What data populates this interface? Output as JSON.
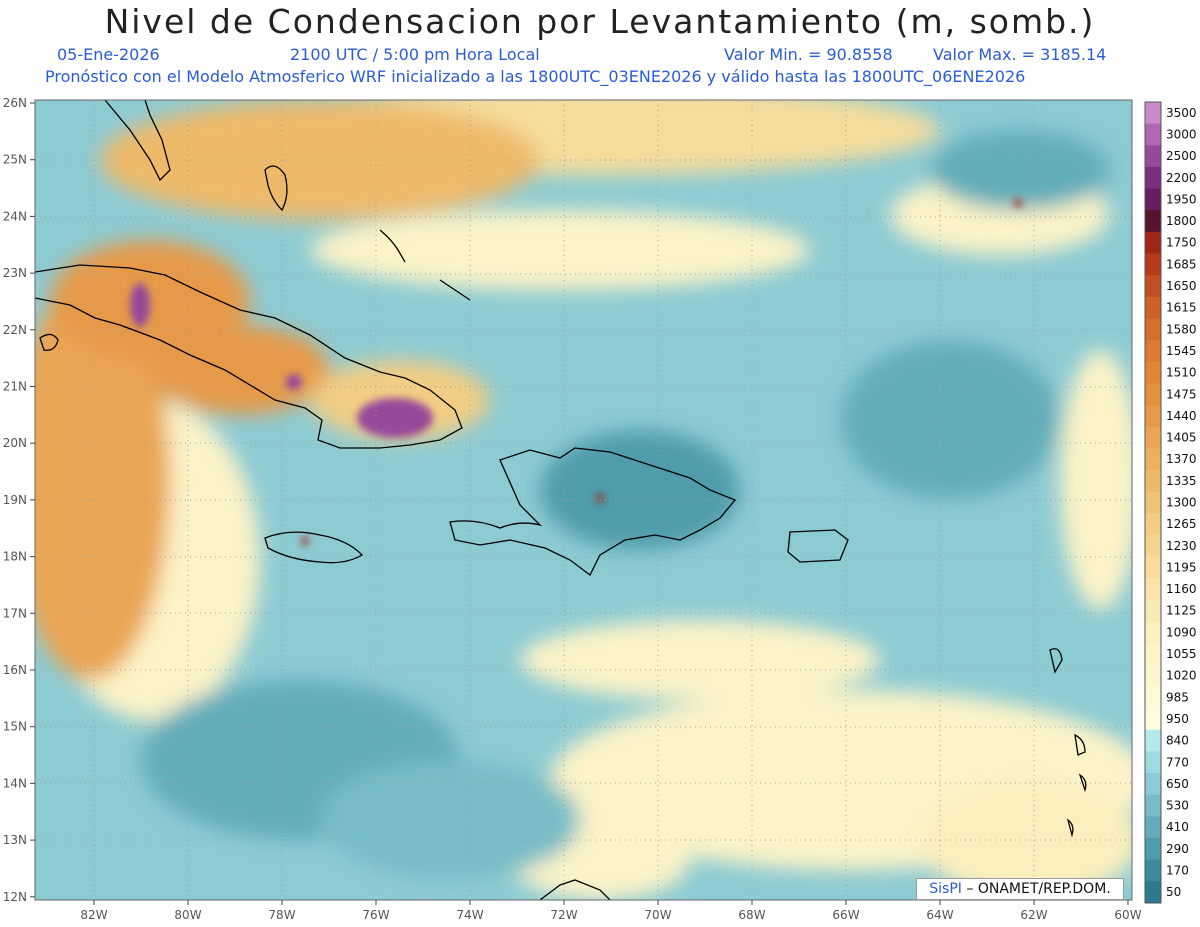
{
  "header": {
    "title": "Nivel de Condensacion por Levantamiento (m, somb.)",
    "date": "05-Ene-2026",
    "time": "2100 UTC / 5:00 pm Hora Local",
    "min_label": "Valor Min. = 90.8558",
    "max_label": "Valor Max. = 3185.14",
    "forecast": "Pronóstico con el Modelo Atmosferico WRF inicializado a las 1800UTC_03ENE2026 y válido hasta las  1800UTC_06ENE2026"
  },
  "map": {
    "lon_labels": [
      "82W",
      "80W",
      "78W",
      "76W",
      "74W",
      "72W",
      "70W",
      "68W",
      "66W",
      "64W",
      "62W",
      "60W"
    ],
    "lat_labels": [
      "26N",
      "25N",
      "24N",
      "23N",
      "22N",
      "21N",
      "20N",
      "19N",
      "18N",
      "17N",
      "16N",
      "15N",
      "14N",
      "13N",
      "12N"
    ]
  },
  "colorbar": {
    "labels": [
      "3500",
      "3000",
      "2500",
      "2200",
      "1950",
      "1800",
      "1750",
      "1685",
      "1650",
      "1615",
      "1580",
      "1545",
      "1510",
      "1475",
      "1440",
      "1405",
      "1370",
      "1335",
      "1300",
      "1265",
      "1230",
      "1195",
      "1160",
      "1125",
      "1090",
      "1055",
      "1020",
      "985",
      "950",
      "840",
      "770",
      "650",
      "530",
      "410",
      "290",
      "170",
      "50"
    ],
    "colors": [
      "#c98ac8",
      "#b066b3",
      "#96489a",
      "#7d2e7e",
      "#681d60",
      "#5a1231",
      "#a02618",
      "#b63a1c",
      "#c24e24",
      "#cd6128",
      "#d56e2c",
      "#db7a30",
      "#df8536",
      "#e3903e",
      "#e69a48",
      "#e9a553",
      "#ecb05e",
      "#eeba6a",
      "#f0c476",
      "#f2cd83",
      "#f4d58f",
      "#f6dd9c",
      "#f8e4a8",
      "#f9eab3",
      "#fbefbe",
      "#fcf3c7",
      "#fdf6cf",
      "#fef9d7",
      "#fffbdf",
      "#b4e8ec",
      "#9fdae0",
      "#8bccd3",
      "#78bdc6",
      "#63adb9",
      "#4f9cab",
      "#3c8b9d",
      "#2b7a8e"
    ]
  },
  "credit": {
    "brand": "SisPI",
    "text": "– ONAMET/REP.DOM."
  }
}
